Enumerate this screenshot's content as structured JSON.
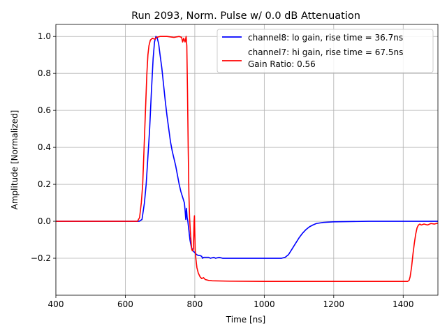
{
  "chart_data": {
    "type": "line",
    "title": "Run 2093, Norm. Pulse w/ 0.0 dB Attenuation",
    "xlabel": "Time [ns]",
    "ylabel": "Amplitude [Normalized]",
    "xlim": [
      400,
      1500
    ],
    "ylim": [
      -0.4,
      1.065
    ],
    "xticks": [
      400,
      600,
      800,
      1000,
      1200,
      1400
    ],
    "xtick_labels": [
      "400",
      "600",
      "800",
      "1000",
      "1200",
      "1400"
    ],
    "yticks": [
      -0.2,
      0.0,
      0.2,
      0.4,
      0.6,
      0.8,
      1.0
    ],
    "ytick_labels": [
      "−0.2",
      "0.0",
      "0.2",
      "0.4",
      "0.6",
      "0.8",
      "1.0"
    ],
    "grid": true,
    "legend_position": "top-right",
    "series": [
      {
        "name": "channel8: lo gain, rise time = 36.7ns",
        "color": "#0000ff",
        "points": [
          [
            400,
            0.0
          ],
          [
            600,
            0.0
          ],
          [
            640,
            0.0
          ],
          [
            648,
            0.01
          ],
          [
            655,
            0.1
          ],
          [
            660,
            0.2
          ],
          [
            665,
            0.35
          ],
          [
            670,
            0.5
          ],
          [
            675,
            0.7
          ],
          [
            680,
            0.88
          ],
          [
            684,
            0.97
          ],
          [
            688,
            1.0
          ],
          [
            692,
            0.99
          ],
          [
            696,
            0.96
          ],
          [
            700,
            0.9
          ],
          [
            705,
            0.83
          ],
          [
            710,
            0.74
          ],
          [
            715,
            0.65
          ],
          [
            720,
            0.57
          ],
          [
            725,
            0.5
          ],
          [
            730,
            0.43
          ],
          [
            735,
            0.38
          ],
          [
            740,
            0.34
          ],
          [
            745,
            0.3
          ],
          [
            750,
            0.25
          ],
          [
            755,
            0.2
          ],
          [
            760,
            0.16
          ],
          [
            765,
            0.13
          ],
          [
            770,
            0.1
          ],
          [
            772,
            0.06
          ],
          [
            774,
            0.01
          ],
          [
            776,
            0.07
          ],
          [
            778,
            0.02
          ],
          [
            780,
            0.0
          ],
          [
            783,
            -0.05
          ],
          [
            786,
            -0.1
          ],
          [
            790,
            -0.14
          ],
          [
            795,
            -0.16
          ],
          [
            800,
            -0.17
          ],
          [
            805,
            -0.18
          ],
          [
            810,
            -0.185
          ],
          [
            815,
            -0.185
          ],
          [
            820,
            -0.19
          ],
          [
            822,
            -0.2
          ],
          [
            826,
            -0.195
          ],
          [
            840,
            -0.195
          ],
          [
            845,
            -0.2
          ],
          [
            855,
            -0.195
          ],
          [
            860,
            -0.2
          ],
          [
            870,
            -0.195
          ],
          [
            880,
            -0.2
          ],
          [
            900,
            -0.2
          ],
          [
            1000,
            -0.2
          ],
          [
            1050,
            -0.2
          ],
          [
            1060,
            -0.195
          ],
          [
            1070,
            -0.18
          ],
          [
            1080,
            -0.15
          ],
          [
            1090,
            -0.12
          ],
          [
            1100,
            -0.09
          ],
          [
            1110,
            -0.065
          ],
          [
            1120,
            -0.045
          ],
          [
            1130,
            -0.03
          ],
          [
            1140,
            -0.02
          ],
          [
            1150,
            -0.012
          ],
          [
            1170,
            -0.006
          ],
          [
            1200,
            -0.003
          ],
          [
            1300,
            0.0
          ],
          [
            1400,
            0.0
          ],
          [
            1500,
            0.0
          ]
        ]
      },
      {
        "name": "channel7: hi gain, rise time = 67.5ns",
        "color": "#ff0000",
        "points": [
          [
            400,
            0.0
          ],
          [
            600,
            0.0
          ],
          [
            635,
            0.0
          ],
          [
            641,
            0.02
          ],
          [
            646,
            0.1
          ],
          [
            650,
            0.2
          ],
          [
            653,
            0.35
          ],
          [
            656,
            0.5
          ],
          [
            659,
            0.65
          ],
          [
            662,
            0.8
          ],
          [
            665,
            0.9
          ],
          [
            668,
            0.95
          ],
          [
            672,
            0.98
          ],
          [
            678,
            0.99
          ],
          [
            685,
            0.985
          ],
          [
            690,
            0.995
          ],
          [
            700,
            1.0
          ],
          [
            720,
            1.0
          ],
          [
            740,
            0.995
          ],
          [
            755,
            1.0
          ],
          [
            762,
            0.995
          ],
          [
            765,
            0.97
          ],
          [
            768,
            0.99
          ],
          [
            772,
            0.97
          ],
          [
            775,
            1.0
          ],
          [
            777,
            0.95
          ],
          [
            779,
            0.7
          ],
          [
            781,
            0.4
          ],
          [
            783,
            0.15
          ],
          [
            785,
            0.02
          ],
          [
            787,
            -0.05
          ],
          [
            789,
            -0.1
          ],
          [
            791,
            -0.15
          ],
          [
            793,
            -0.16
          ],
          [
            796,
            -0.15
          ],
          [
            798,
            0.0
          ],
          [
            799,
            0.03
          ],
          [
            801,
            -0.15
          ],
          [
            803,
            -0.2
          ],
          [
            806,
            -0.25
          ],
          [
            810,
            -0.28
          ],
          [
            815,
            -0.3
          ],
          [
            820,
            -0.31
          ],
          [
            825,
            -0.305
          ],
          [
            830,
            -0.315
          ],
          [
            840,
            -0.32
          ],
          [
            850,
            -0.322
          ],
          [
            900,
            -0.324
          ],
          [
            1000,
            -0.325
          ],
          [
            1200,
            -0.325
          ],
          [
            1400,
            -0.325
          ],
          [
            1413,
            -0.325
          ],
          [
            1417,
            -0.32
          ],
          [
            1420,
            -0.3
          ],
          [
            1424,
            -0.25
          ],
          [
            1428,
            -0.18
          ],
          [
            1432,
            -0.12
          ],
          [
            1436,
            -0.07
          ],
          [
            1440,
            -0.035
          ],
          [
            1444,
            -0.02
          ],
          [
            1448,
            -0.015
          ],
          [
            1452,
            -0.02
          ],
          [
            1460,
            -0.015
          ],
          [
            1470,
            -0.02
          ],
          [
            1480,
            -0.012
          ],
          [
            1490,
            -0.015
          ],
          [
            1500,
            -0.01
          ]
        ]
      }
    ],
    "legend_extra": "Gain Ratio: 0.56"
  }
}
